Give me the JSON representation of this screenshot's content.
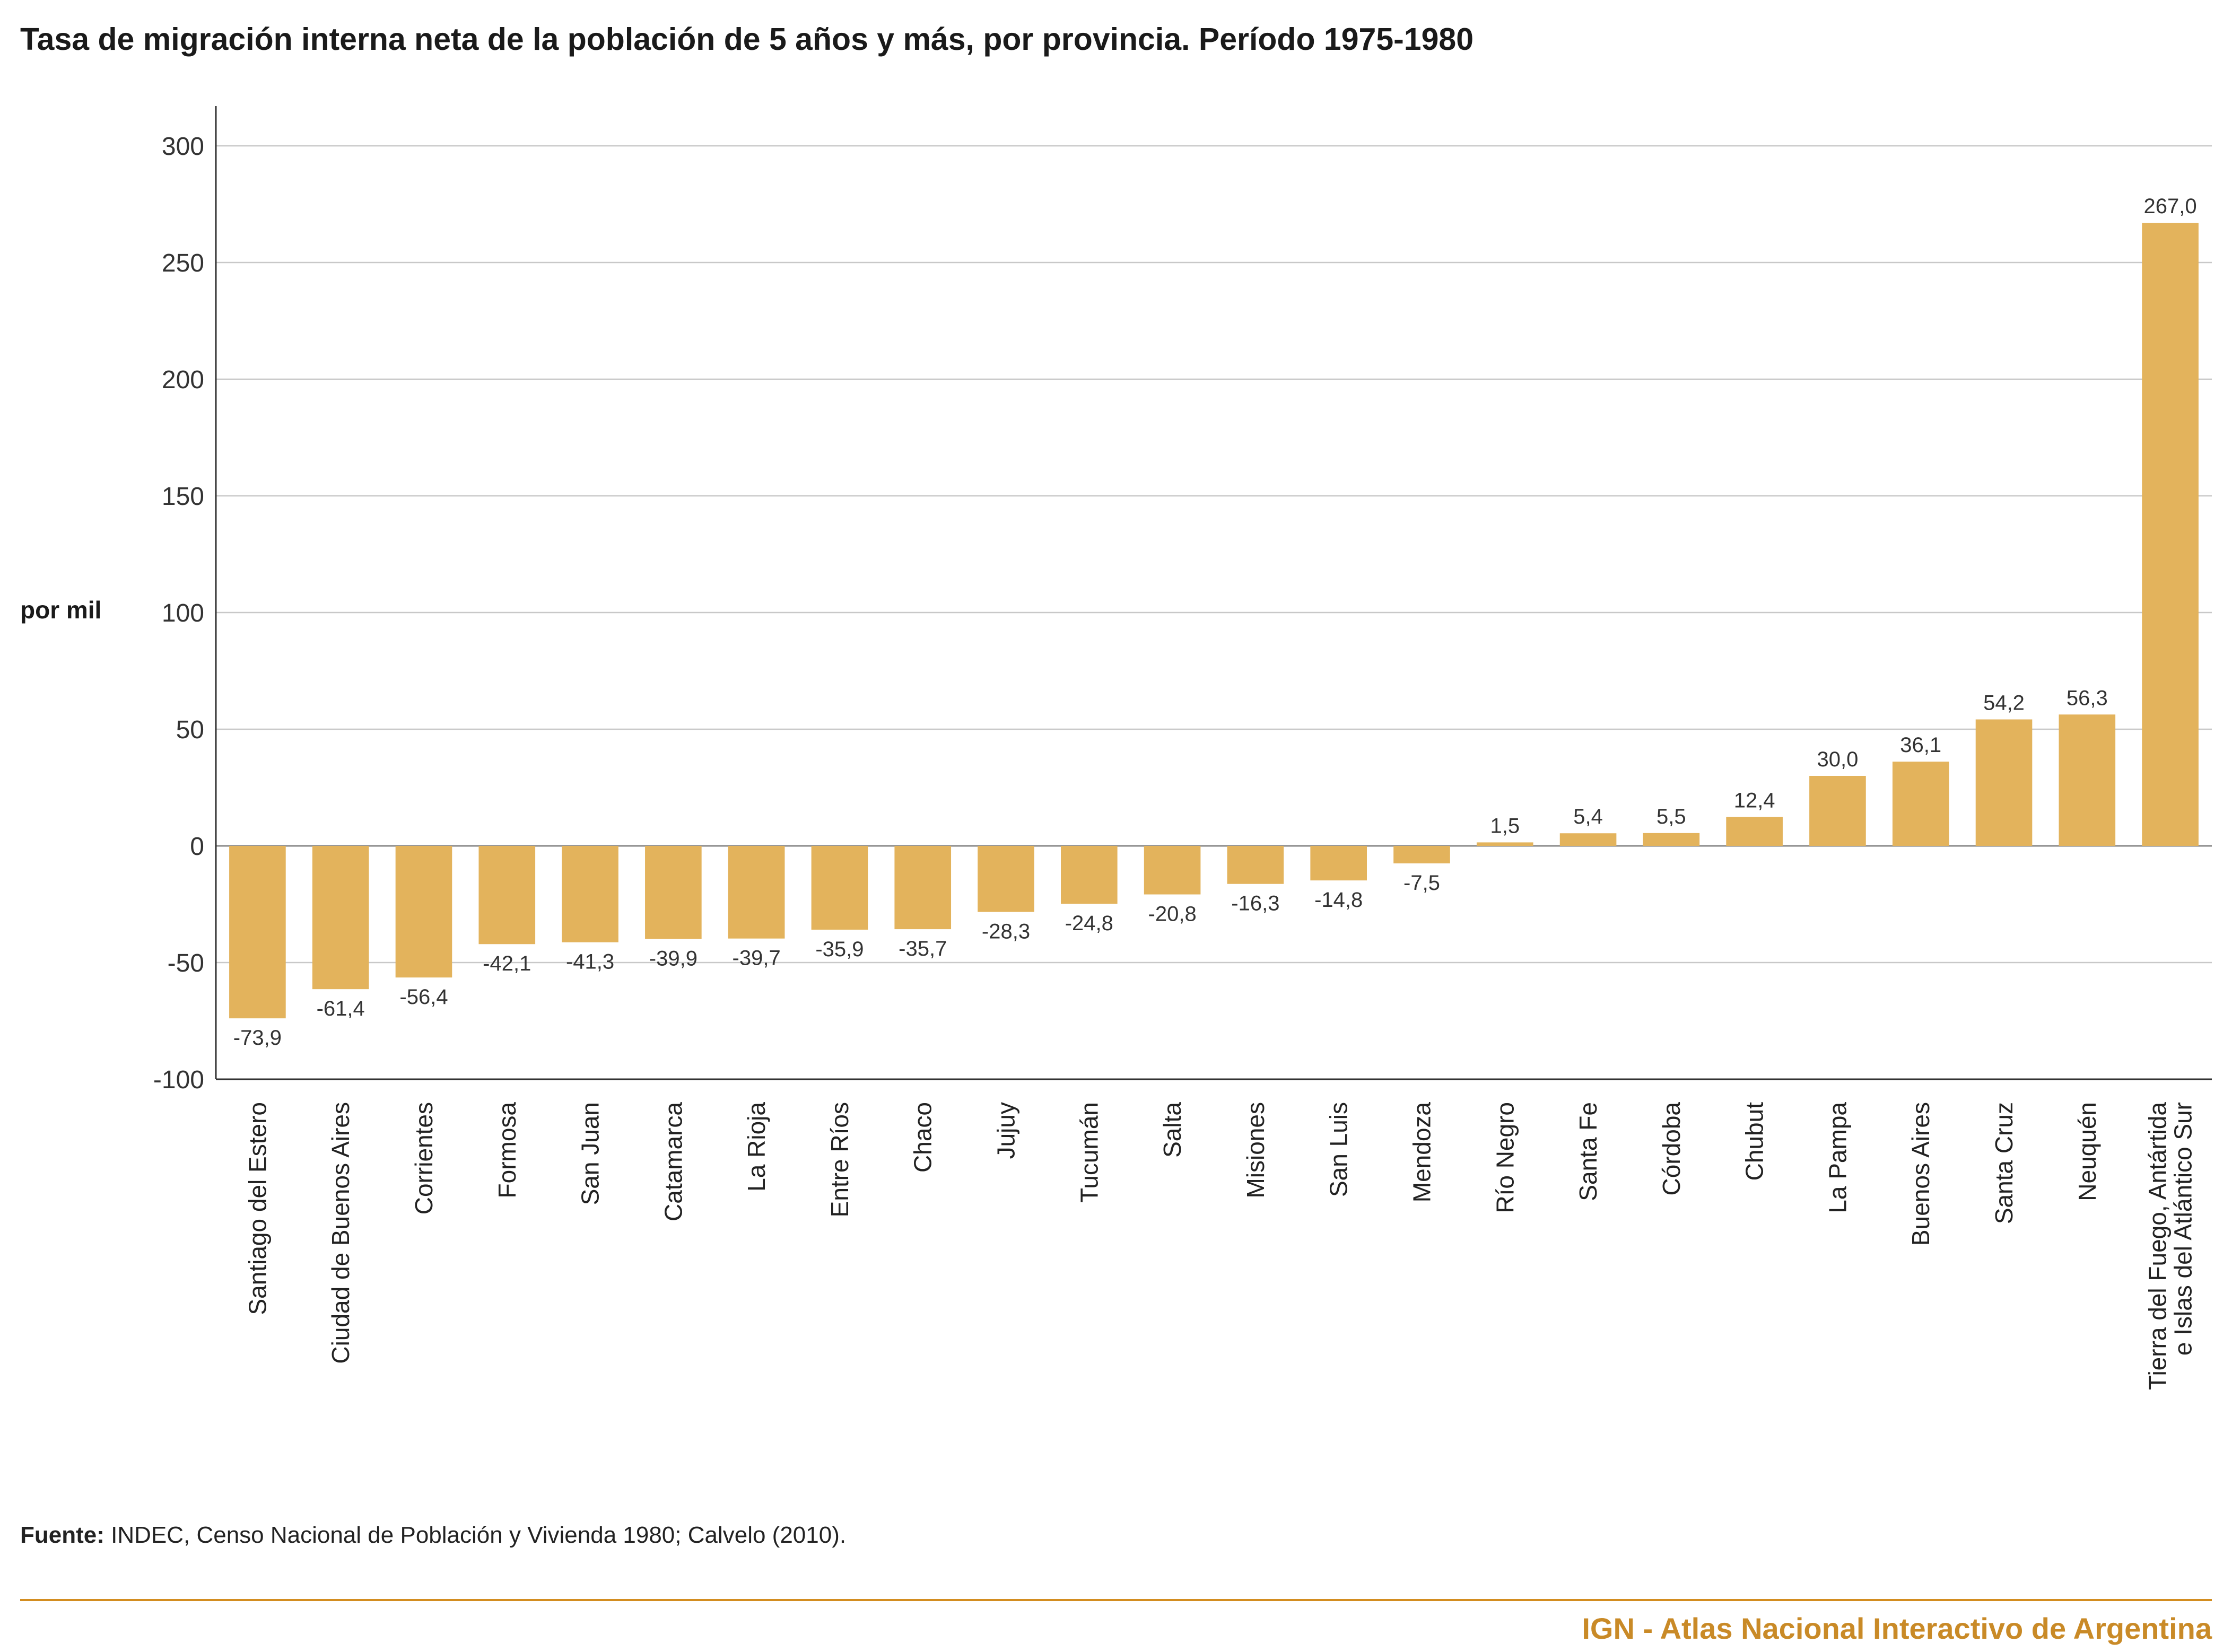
{
  "title": "Tasa de migración interna neta de la población de 5 años y más, por provincia. Período 1975-1980",
  "source": {
    "label": "Fuente:",
    "text": " INDEC, Censo Nacional de Población y Vivienda 1980; Calvelo (2010)."
  },
  "footer": {
    "brand": "IGN - Atlas Nacional Interactivo de Argentina"
  },
  "colors": {
    "bar": "#e3b35c",
    "grid": "#c8c8c8",
    "axis": "#333333",
    "footer_rule": "#d38d20",
    "footer_text": "#c98a27"
  },
  "chart_data": {
    "type": "bar",
    "ylabel": "por mil",
    "ylim": [
      -100,
      300
    ],
    "yticks": [
      300,
      250,
      200,
      150,
      100,
      50,
      0,
      -50,
      -100
    ],
    "grid": true,
    "categories": [
      [
        "Santiago del Estero"
      ],
      [
        "Ciudad de Buenos Aires"
      ],
      [
        "Corrientes"
      ],
      [
        "Formosa"
      ],
      [
        "San Juan"
      ],
      [
        "Catamarca"
      ],
      [
        "La Rioja"
      ],
      [
        "Entre Ríos"
      ],
      [
        "Chaco"
      ],
      [
        "Jujuy"
      ],
      [
        "Tucumán"
      ],
      [
        "Salta"
      ],
      [
        "Misiones"
      ],
      [
        "San Luis"
      ],
      [
        "Mendoza"
      ],
      [
        "Río Negro"
      ],
      [
        "Santa Fe"
      ],
      [
        "Córdoba"
      ],
      [
        "Chubut"
      ],
      [
        "La Pampa"
      ],
      [
        "Buenos Aires"
      ],
      [
        "Santa Cruz"
      ],
      [
        "Neuquén"
      ],
      [
        "Tierra del Fuego, Antártida",
        "e Islas del Atlántico Sur"
      ]
    ],
    "values": [
      -73.9,
      -61.4,
      -56.4,
      -42.1,
      -41.3,
      -39.9,
      -39.7,
      -35.9,
      -35.7,
      -28.3,
      -24.8,
      -20.8,
      -16.3,
      -14.8,
      -7.5,
      1.5,
      5.4,
      5.5,
      12.4,
      30.0,
      36.1,
      54.2,
      56.3,
      267.0
    ],
    "value_labels": [
      "-73,9",
      "-61,4",
      "-56,4",
      "-42,1",
      "-41,3",
      "-39,9",
      "-39,7",
      "-35,9",
      "-35,7",
      "-28,3",
      "-24,8",
      "-20,8",
      "-16,3",
      "-14,8",
      "-7,5",
      "1,5",
      "5,4",
      "5,5",
      "12,4",
      "30,0",
      "36,1",
      "54,2",
      "56,3",
      "267,0"
    ]
  }
}
